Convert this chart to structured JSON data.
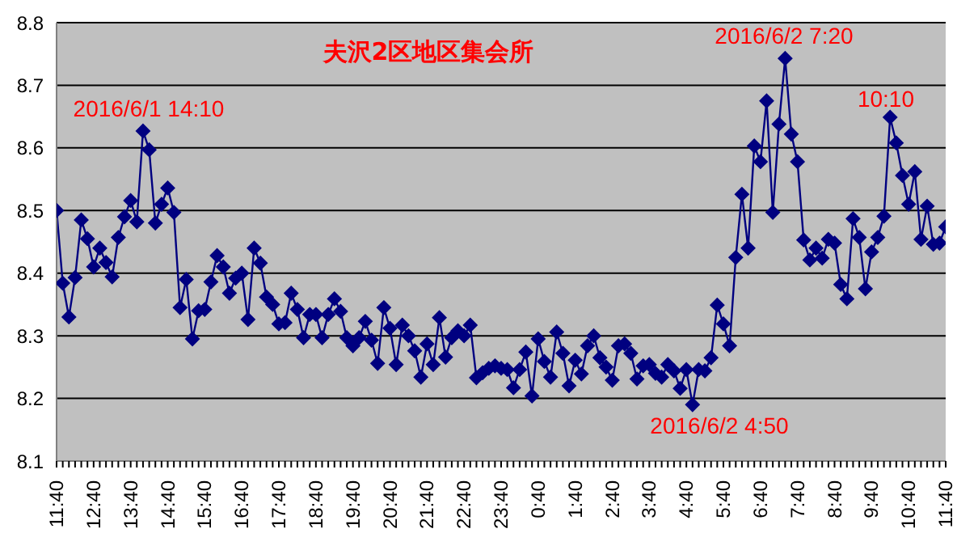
{
  "chart_data": {
    "type": "line",
    "title": "夫沢2区地区集会所",
    "annotations": [
      "2016/6/1 14:10",
      "2016/6/2 7:20",
      "10:10",
      "2016/6/2 4:50"
    ],
    "categories": [
      "11:40",
      null,
      null,
      null,
      null,
      null,
      "12:40",
      null,
      null,
      null,
      null,
      null,
      "13:40",
      null,
      null,
      null,
      null,
      null,
      "14:40",
      null,
      null,
      null,
      null,
      null,
      "15:40",
      null,
      null,
      null,
      null,
      null,
      "16:40",
      null,
      null,
      null,
      null,
      null,
      "17:40",
      null,
      null,
      null,
      null,
      null,
      "18:40",
      null,
      null,
      null,
      null,
      null,
      "19:40",
      null,
      null,
      null,
      null,
      null,
      "20:40",
      null,
      null,
      null,
      null,
      null,
      "21:40",
      null,
      null,
      null,
      null,
      null,
      "22:40",
      null,
      null,
      null,
      null,
      null,
      "23:40",
      null,
      null,
      null,
      null,
      null,
      "0:40",
      null,
      null,
      null,
      null,
      null,
      "1:40",
      null,
      null,
      null,
      null,
      null,
      "2:40",
      null,
      null,
      null,
      null,
      null,
      "3:40",
      null,
      null,
      null,
      null,
      null,
      "4:40",
      null,
      null,
      null,
      null,
      null,
      "5:40",
      null,
      null,
      null,
      null,
      null,
      "6:40",
      null,
      null,
      null,
      null,
      null,
      "7:40",
      null,
      null,
      null,
      null,
      null,
      "8:40",
      null,
      null,
      null,
      null,
      null,
      "9:40",
      null,
      null,
      null,
      null,
      null,
      "10:40",
      null,
      null,
      null,
      null,
      null,
      "11:40"
    ],
    "series": [
      {
        "color": "#000080",
        "values": [
          8.5,
          8.384,
          8.33,
          8.393,
          8.485,
          8.455,
          8.41,
          8.44,
          8.417,
          8.394,
          8.457,
          8.49,
          8.516,
          8.482,
          8.627,
          8.597,
          8.48,
          8.51,
          8.536,
          8.497,
          8.345,
          8.39,
          8.295,
          8.34,
          8.342,
          8.386,
          8.428,
          8.41,
          8.368,
          8.392,
          8.4,
          8.326,
          8.44,
          8.416,
          8.362,
          8.35,
          8.319,
          8.321,
          8.368,
          8.342,
          8.297,
          8.334,
          8.334,
          8.297,
          8.334,
          8.359,
          8.339,
          8.297,
          8.284,
          8.297,
          8.323,
          8.293,
          8.256,
          8.345,
          8.312,
          8.254,
          8.317,
          8.3,
          8.276,
          8.234,
          8.287,
          8.254,
          8.329,
          8.266,
          8.297,
          8.308,
          8.3,
          8.317,
          8.233,
          8.241,
          8.248,
          8.252,
          8.248,
          8.246,
          8.217,
          8.246,
          8.274,
          8.204,
          8.295,
          8.259,
          8.234,
          8.306,
          8.272,
          8.22,
          8.261,
          8.239,
          8.284,
          8.3,
          8.265,
          8.25,
          8.229,
          8.284,
          8.287,
          8.272,
          8.231,
          8.252,
          8.254,
          8.24,
          8.234,
          8.254,
          8.244,
          8.216,
          8.246,
          8.19,
          8.246,
          8.244,
          8.265,
          8.349,
          8.319,
          8.284,
          8.425,
          8.526,
          8.44,
          8.603,
          8.578,
          8.675,
          8.497,
          8.638,
          8.743,
          8.622,
          8.578,
          8.453,
          8.421,
          8.44,
          8.424,
          8.454,
          8.448,
          8.382,
          8.359,
          8.487,
          8.457,
          8.375,
          8.434,
          8.457,
          8.491,
          8.649,
          8.608,
          8.556,
          8.51,
          8.562,
          8.454,
          8.507,
          8.446,
          8.448,
          8.474
        ]
      }
    ],
    "ylim": [
      8.1,
      8.8
    ],
    "yticks": [
      8.1,
      8.2,
      8.3,
      8.4,
      8.5,
      8.6,
      8.7,
      8.8
    ],
    "grid": "y",
    "marker": "diamond"
  }
}
